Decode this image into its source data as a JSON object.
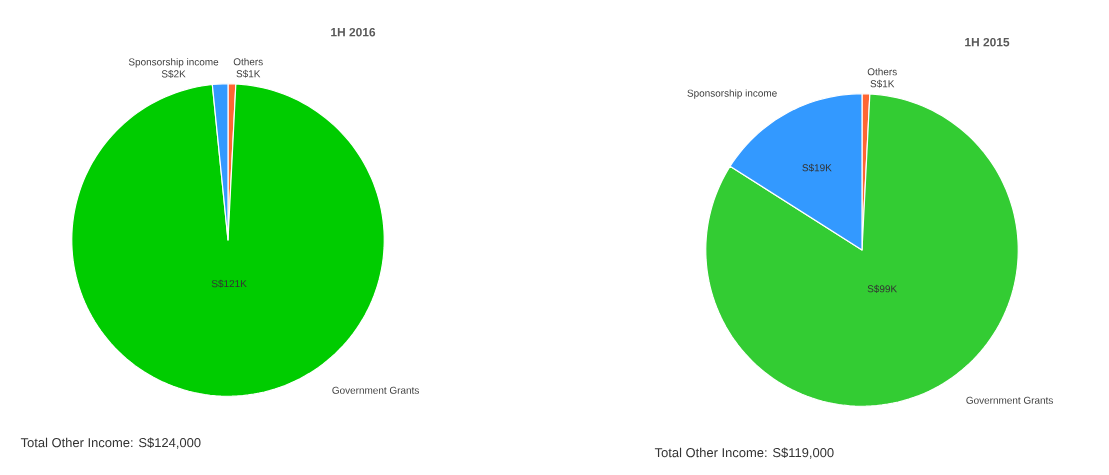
{
  "chart_data": [
    {
      "type": "pie",
      "title": "1H 2016",
      "categories": [
        "Others",
        "Government Grants",
        "Sponsorship income"
      ],
      "values": [
        0.8,
        97.6,
        1.6
      ],
      "colors": [
        "#ff6633",
        "#00cc00",
        "#3399ff"
      ],
      "value_labels": [
        "S$1K",
        "S$121K",
        "S$2K"
      ],
      "annotations": [
        "Total Other Income:  S$124,000"
      ]
    },
    {
      "type": "pie",
      "title": "1H 2015",
      "categories": [
        "Others",
        "Government Grants",
        "Sponsorship income"
      ],
      "values": [
        0.8,
        83.2,
        16.0
      ],
      "colors": [
        "#ff6633",
        "#33cc33",
        "#3399ff"
      ],
      "value_labels": [
        "S$1K",
        "S$99K",
        "S$19K"
      ],
      "annotations": [
        "Total Other Income:  S$119,000"
      ]
    }
  ]
}
